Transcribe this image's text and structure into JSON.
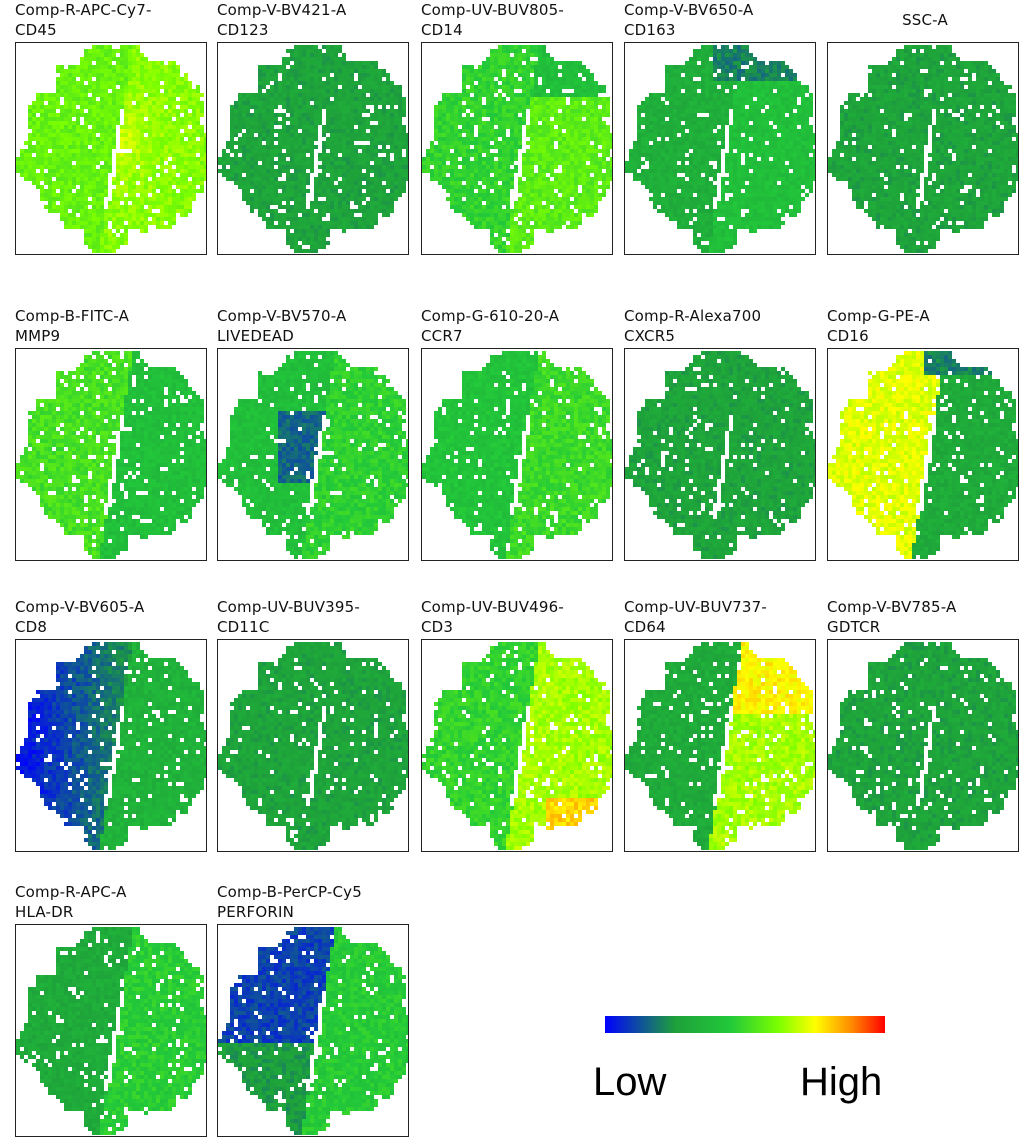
{
  "chart_data": {
    "type": "heatmap",
    "description_kind": "tSNE marker expression panels",
    "panels": [
      {
        "channel": "Comp-R-APC-Cy7-",
        "marker": "CD45",
        "pattern": "cd45"
      },
      {
        "channel": "Comp-V-BV421-A",
        "marker": "CD123",
        "pattern": "uniformLow"
      },
      {
        "channel": "Comp-UV-BUV805-",
        "marker": "CD14",
        "pattern": "cd14"
      },
      {
        "channel": "Comp-V-BV650-A",
        "marker": "CD163",
        "pattern": "cd163"
      },
      {
        "channel": "SSC-A",
        "marker": "",
        "pattern": "uniformLow"
      },
      {
        "channel": "Comp-B-FITC-A",
        "marker": "MMP9",
        "pattern": "mmp9"
      },
      {
        "channel": "Comp-V-BV570-A",
        "marker": "LIVEDEAD",
        "pattern": "livedead"
      },
      {
        "channel": "Comp-G-610-20-A",
        "marker": "CCR7",
        "pattern": "ccr7"
      },
      {
        "channel": "Comp-R-Alexa700",
        "marker": "CXCR5",
        "pattern": "uniformLow"
      },
      {
        "channel": "Comp-G-PE-A",
        "marker": "CD16",
        "pattern": "cd16"
      },
      {
        "channel": "Comp-V-BV605-A",
        "marker": "CD8",
        "pattern": "cd8"
      },
      {
        "channel": "Comp-UV-BUV395-",
        "marker": "CD11C",
        "pattern": "uniformLow"
      },
      {
        "channel": "Comp-UV-BUV496-",
        "marker": "CD3",
        "pattern": "cd3"
      },
      {
        "channel": "Comp-UV-BUV737-",
        "marker": "CD64",
        "pattern": "cd64"
      },
      {
        "channel": "Comp-V-BV785-A",
        "marker": "GDTCR",
        "pattern": "uniformLow"
      },
      {
        "channel": "Comp-R-APC-A",
        "marker": "HLA-DR",
        "pattern": "hladr"
      },
      {
        "channel": "Comp-B-PerCP-Cy5",
        "marker": "PERFORIN",
        "pattern": "perforin"
      }
    ],
    "colorscale": [
      "#0000ff",
      "#1ea03a",
      "#22c93a",
      "#7cff00",
      "#ffff00",
      "#ff8a00",
      "#ff0000"
    ],
    "legend": {
      "low_label": "Low",
      "high_label": "High"
    }
  }
}
